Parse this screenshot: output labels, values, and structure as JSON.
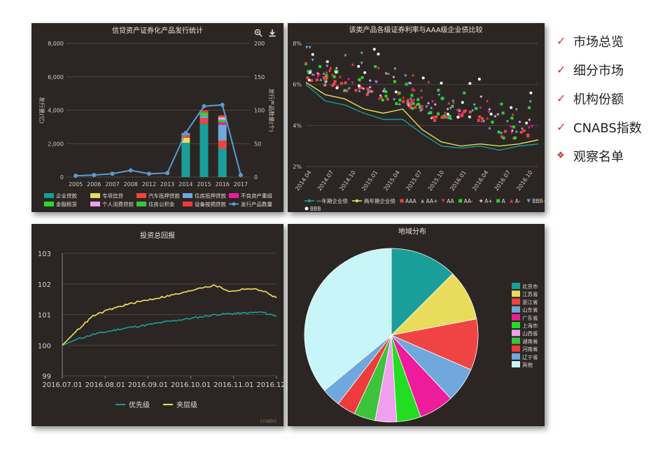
{
  "menu": {
    "items": [
      {
        "label": "市场总览",
        "icon": "check-icon"
      },
      {
        "label": "细分市场",
        "icon": "check-icon"
      },
      {
        "label": "机构份额",
        "icon": "check-icon"
      },
      {
        "label": "CNABS指数",
        "icon": "check-icon"
      },
      {
        "label": "观察名单",
        "icon": "diamond-icon"
      }
    ],
    "accent": "#c0392b"
  },
  "watermark": "cnabs",
  "chart_data": [
    {
      "type": "bar",
      "title": "信贷资产证券化产品发行统计",
      "ylabel": "发行量(亿)",
      "y2label": "发行产品数量(个)",
      "ylim": [
        0,
        8000
      ],
      "y2lim": [
        0,
        200
      ],
      "yticks": [
        "8,000",
        "6,000",
        "4,000",
        "2,000",
        "0"
      ],
      "y2ticks": [
        "200",
        "150",
        "100",
        "50",
        "0"
      ],
      "categories": [
        "2005",
        "2006",
        "2007",
        "2008",
        "2012",
        "2013",
        "2014",
        "2015",
        "2016",
        "2017"
      ],
      "stacked": true,
      "series": [
        {
          "name": "企业贷款",
          "color": "#1a9e9a",
          "values": [
            0,
            0,
            0,
            0,
            0,
            0,
            2050,
            3200,
            1700,
            0
          ]
        },
        {
          "name": "专项信贷",
          "color": "#e8dc5a",
          "values": [
            0,
            0,
            0,
            0,
            0,
            0,
            300,
            0,
            0,
            0
          ]
        },
        {
          "name": "汽车抵押贷款",
          "color": "#f04444",
          "values": [
            0,
            0,
            0,
            0,
            0,
            0,
            150,
            330,
            480,
            0
          ]
        },
        {
          "name": "住房抵押贷款",
          "color": "#6fa8dc",
          "values": [
            0,
            0,
            0,
            0,
            0,
            0,
            70,
            120,
            950,
            0
          ]
        },
        {
          "name": "不良资产重组",
          "color": "#ee1c9a",
          "values": [
            0,
            0,
            0,
            0,
            0,
            0,
            0,
            0,
            150,
            0
          ]
        },
        {
          "name": "金融租赁",
          "color": "#22dd22",
          "values": [
            0,
            0,
            0,
            0,
            0,
            0,
            30,
            100,
            150,
            0
          ]
        },
        {
          "name": "个人消费贷款",
          "color": "#f0a0ee",
          "values": [
            0,
            0,
            0,
            0,
            0,
            0,
            30,
            30,
            150,
            0
          ]
        },
        {
          "name": "住房公积金",
          "color": "#3cc43c",
          "values": [
            0,
            0,
            0,
            0,
            0,
            0,
            0,
            100,
            0,
            0
          ]
        },
        {
          "name": "设备按揭贷款",
          "color": "#ee3b3b",
          "values": [
            0,
            0,
            0,
            0,
            0,
            0,
            0,
            120,
            120,
            0
          ]
        }
      ],
      "line": {
        "name": "发行产品数量",
        "color": "#5b9bd5",
        "values": [
          2,
          3,
          5,
          10,
          5,
          6,
          66,
          106,
          108,
          3
        ]
      }
    },
    {
      "type": "scatter",
      "title": "该类产品各级证券利率与AAA级企业债比较",
      "ylim": [
        2,
        8
      ],
      "yticks": [
        "8%",
        "6%",
        "4%",
        "2%"
      ],
      "xlabels": [
        "2014.04",
        "2014.07",
        "2014.10",
        "2015.01",
        "2015.04",
        "2015.07",
        "2015.10",
        "2016.01",
        "2016.04",
        "2016.07",
        "2016.10"
      ],
      "lines": [
        {
          "name": "一年期企业债",
          "color": "#1a9e9a",
          "values": [
            6.0,
            5.2,
            5.0,
            4.6,
            4.3,
            4.3,
            3.6,
            3.0,
            2.9,
            3.0,
            2.8,
            3.0,
            3.1
          ]
        },
        {
          "name": "两年期企业债",
          "color": "#e8dc5a",
          "values": [
            6.1,
            5.5,
            5.3,
            4.8,
            4.6,
            4.8,
            3.8,
            3.2,
            3.0,
            3.1,
            3.0,
            3.1,
            3.3
          ]
        }
      ],
      "scatter_series": [
        {
          "name": "AAA",
          "color": "#f04444",
          "marker": "square"
        },
        {
          "name": "AA+",
          "color": "#6fa8dc",
          "marker": "triangle"
        },
        {
          "name": "AA",
          "color": "#ee1c9a",
          "marker": "triangle-down"
        },
        {
          "name": "AA-",
          "color": "#22dd22",
          "marker": "square"
        },
        {
          "name": "A+",
          "color": "#f0a0ee",
          "marker": "diamond"
        },
        {
          "name": "A",
          "color": "#3cc43c",
          "marker": "square"
        },
        {
          "name": "A-",
          "color": "#ee3b3b",
          "marker": "triangle"
        },
        {
          "name": "BBB+",
          "color": "#6fa8dc",
          "marker": "triangle-down"
        },
        {
          "name": "BBB",
          "color": "#ffffff",
          "marker": "circle"
        }
      ]
    },
    {
      "type": "line",
      "title": "投资总回报",
      "ylim": [
        99,
        103
      ],
      "yticks": [
        "103",
        "102",
        "101",
        "100",
        "99"
      ],
      "xlabels": [
        "2016.07.01",
        "2016.08.01",
        "2016.09.01",
        "2016.10.01",
        "2016.11.01",
        "2016.12.01"
      ],
      "series": [
        {
          "name": "优先级",
          "color": "#1a9e9a",
          "values": [
            100.0,
            100.2,
            100.35,
            100.45,
            100.55,
            100.62,
            100.7,
            100.78,
            100.85,
            100.92,
            101.0,
            101.03,
            101.05,
            101.08,
            100.95
          ]
        },
        {
          "name": "夹层级",
          "color": "#f5e05a",
          "values": [
            100.0,
            100.5,
            100.95,
            101.15,
            101.3,
            101.42,
            101.52,
            101.62,
            101.72,
            101.88,
            101.95,
            101.75,
            101.85,
            101.8,
            101.55
          ]
        }
      ]
    },
    {
      "type": "pie",
      "title": "地域分布",
      "slices": [
        {
          "name": "北京市",
          "value": 12.5,
          "color": "#1a9e9a"
        },
        {
          "name": "江苏省",
          "value": 9.5,
          "color": "#e8dc5a"
        },
        {
          "name": "浙江省",
          "value": 9.5,
          "color": "#f04444"
        },
        {
          "name": "山东省",
          "value": 6.5,
          "color": "#6fa8dc"
        },
        {
          "name": "广东省",
          "value": 6.5,
          "color": "#ee1c9a"
        },
        {
          "name": "上海市",
          "value": 4.5,
          "color": "#22dd22"
        },
        {
          "name": "山西省",
          "value": 4.0,
          "color": "#f0a0ee"
        },
        {
          "name": "湖南省",
          "value": 4.0,
          "color": "#3cc43c"
        },
        {
          "name": "河南省",
          "value": 3.5,
          "color": "#ee3b3b"
        },
        {
          "name": "辽宁省",
          "value": 3.5,
          "color": "#6fa8dc"
        },
        {
          "name": "其他",
          "value": 36.0,
          "color": "#c8f5f7"
        }
      ]
    }
  ]
}
